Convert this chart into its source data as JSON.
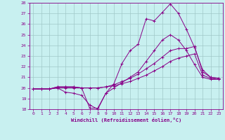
{
  "title": "",
  "xlabel": "Windchill (Refroidissement éolien,°C)",
  "background_color": "#c8f0f0",
  "line_color": "#880088",
  "grid_color": "#a0c8c8",
  "xlim": [
    -0.5,
    23.5
  ],
  "ylim": [
    18,
    28
  ],
  "xticks": [
    0,
    1,
    2,
    3,
    4,
    5,
    6,
    7,
    8,
    9,
    10,
    11,
    12,
    13,
    14,
    15,
    16,
    17,
    18,
    19,
    20,
    21,
    22,
    23
  ],
  "yticks": [
    18,
    19,
    20,
    21,
    22,
    23,
    24,
    25,
    26,
    27,
    28
  ],
  "series": [
    {
      "x": [
        0,
        1,
        2,
        3,
        4,
        5,
        6,
        7,
        8,
        9,
        10,
        11,
        12,
        13,
        14,
        15,
        16,
        17,
        18,
        19,
        20,
        21,
        22,
        23
      ],
      "y": [
        19.9,
        19.9,
        19.9,
        20.1,
        20.1,
        20.1,
        20.0,
        18.1,
        18.1,
        19.5,
        20.4,
        22.3,
        23.5,
        24.1,
        26.5,
        26.3,
        27.1,
        27.9,
        27.0,
        25.5,
        23.8,
        21.7,
        21.0,
        20.9
      ]
    },
    {
      "x": [
        0,
        1,
        2,
        3,
        4,
        5,
        6,
        7,
        8,
        9,
        10,
        11,
        12,
        13,
        14,
        15,
        16,
        17,
        18,
        19,
        20,
        21,
        22,
        23
      ],
      "y": [
        19.9,
        19.9,
        19.9,
        20.0,
        19.6,
        19.5,
        19.3,
        18.4,
        18.0,
        19.5,
        20.0,
        20.5,
        21.0,
        21.5,
        22.5,
        23.5,
        24.5,
        25.0,
        24.5,
        23.5,
        22.2,
        21.0,
        20.8,
        20.8
      ]
    },
    {
      "x": [
        0,
        1,
        2,
        3,
        4,
        5,
        6,
        7,
        8,
        9,
        10,
        11,
        12,
        13,
        14,
        15,
        16,
        17,
        18,
        19,
        20,
        21,
        22,
        23
      ],
      "y": [
        19.9,
        19.9,
        19.9,
        20.1,
        20.1,
        20.1,
        20.0,
        20.0,
        20.0,
        20.1,
        20.3,
        20.6,
        20.9,
        21.3,
        21.8,
        22.3,
        22.9,
        23.5,
        23.7,
        23.7,
        23.9,
        21.5,
        21.0,
        20.9
      ]
    },
    {
      "x": [
        0,
        1,
        2,
        3,
        4,
        5,
        6,
        7,
        8,
        9,
        10,
        11,
        12,
        13,
        14,
        15,
        16,
        17,
        18,
        19,
        20,
        21,
        22,
        23
      ],
      "y": [
        19.9,
        19.9,
        19.9,
        20.0,
        20.0,
        20.0,
        20.0,
        20.0,
        20.0,
        20.1,
        20.2,
        20.4,
        20.6,
        20.9,
        21.2,
        21.6,
        22.0,
        22.5,
        22.8,
        23.0,
        23.2,
        21.2,
        20.9,
        20.8
      ]
    }
  ]
}
